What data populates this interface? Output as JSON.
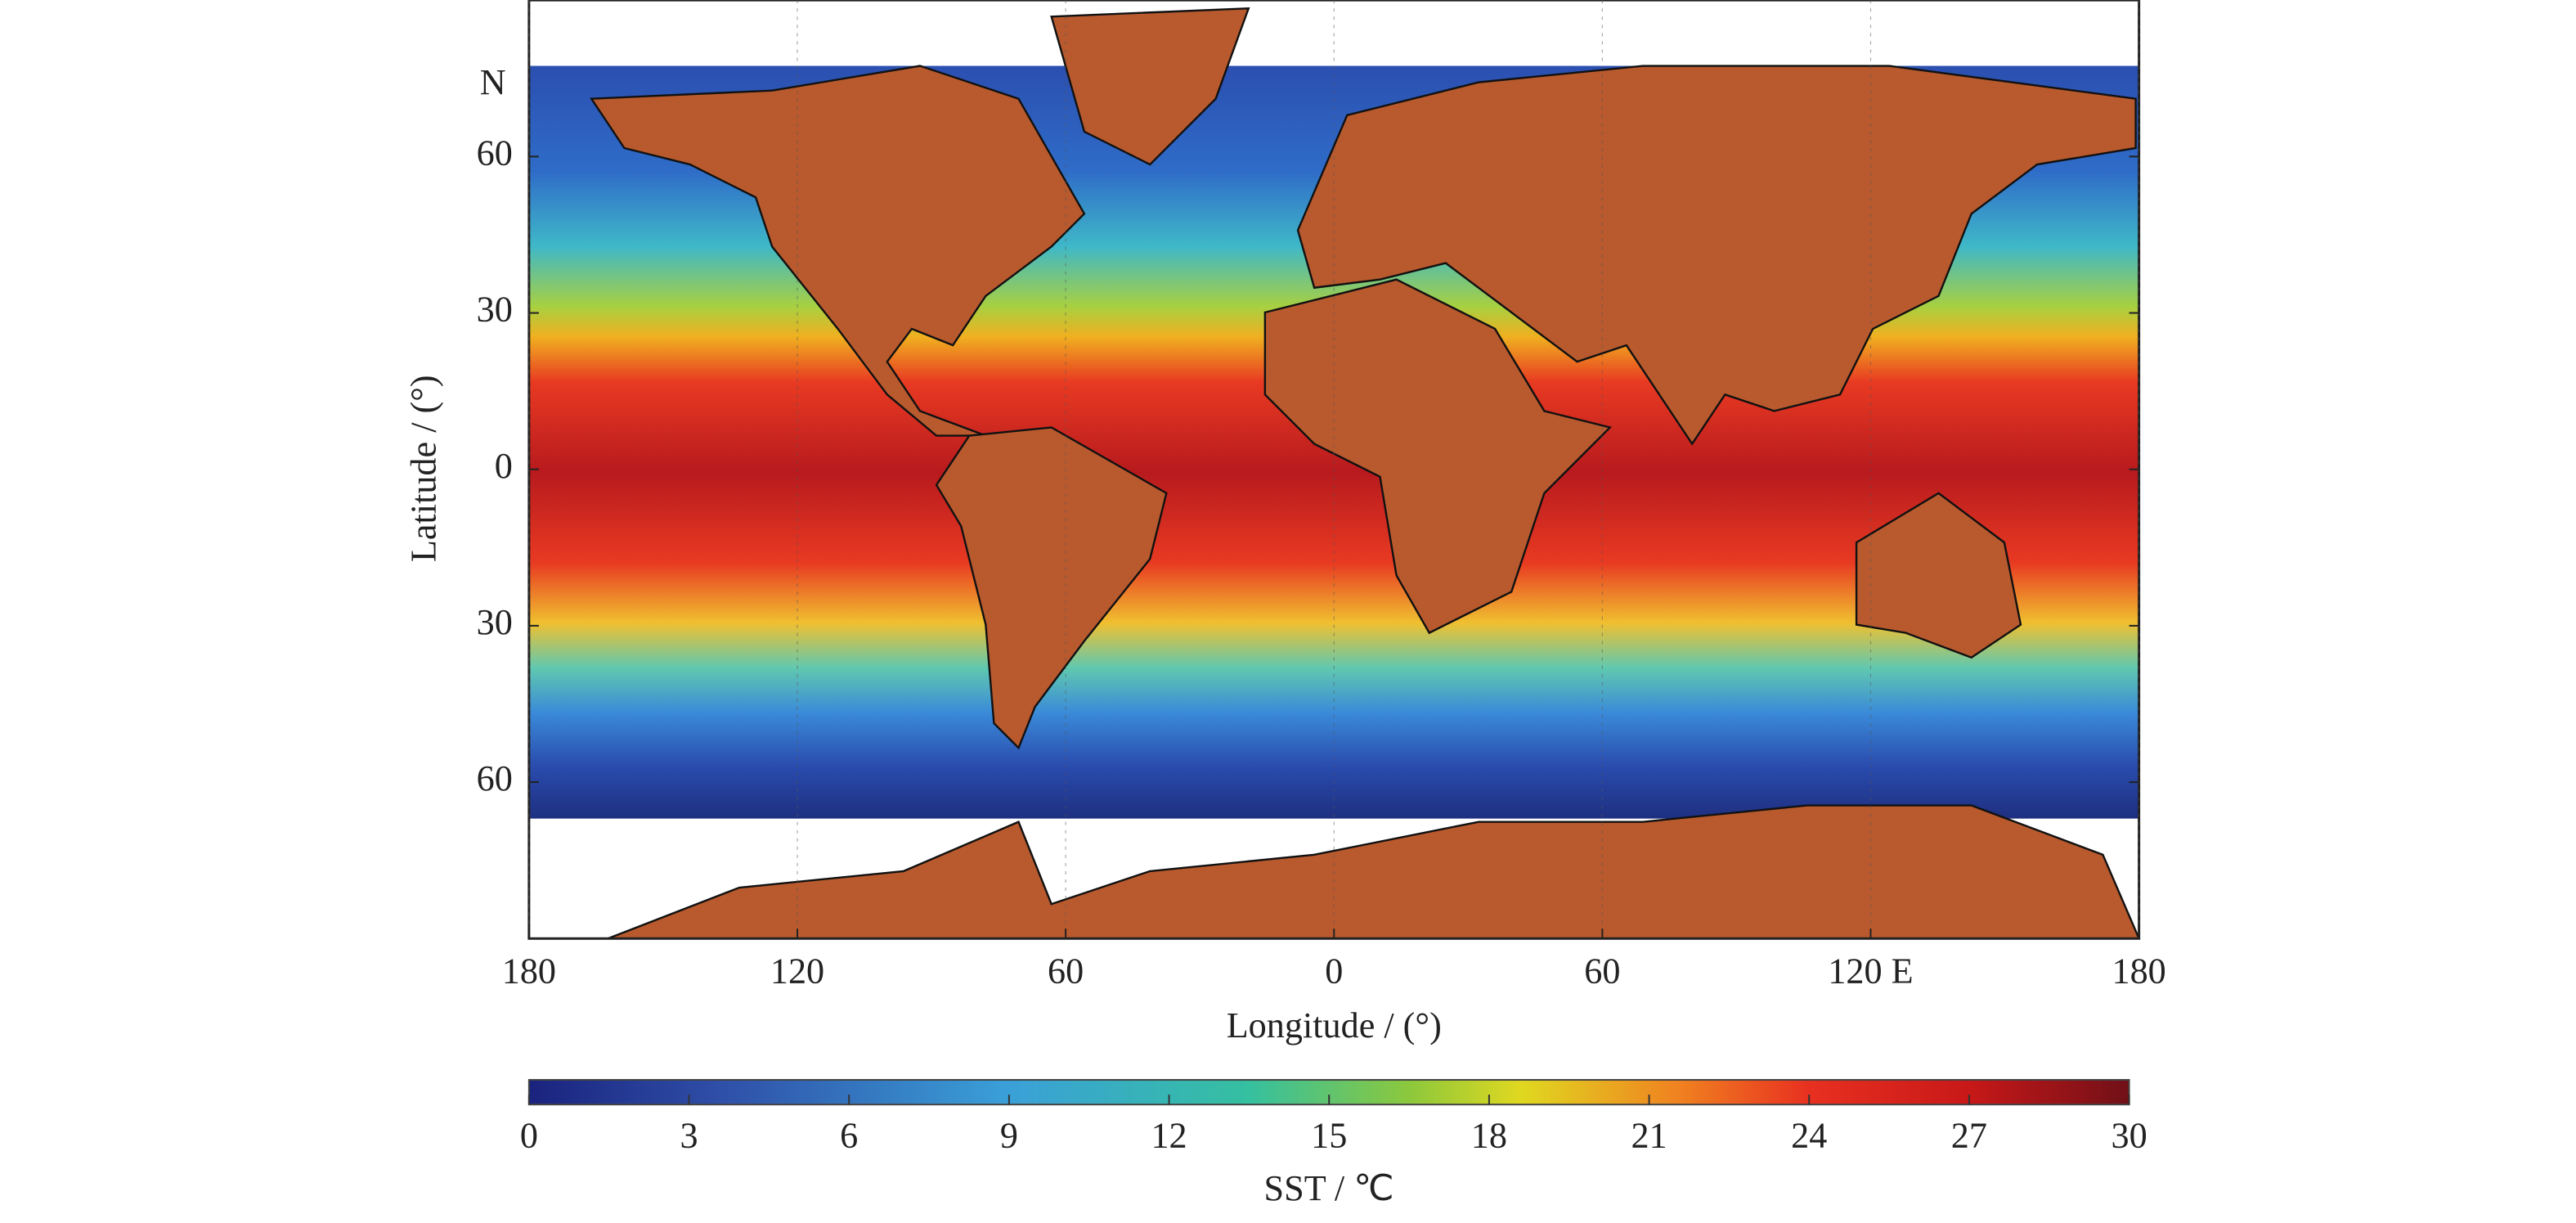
{
  "map": {
    "xlabel": "Longitude / (°)",
    "ylabel": "Latitude / (°)",
    "north_label": "N",
    "xlim": [
      -180,
      180
    ],
    "ylim": [
      -90,
      90
    ],
    "xticks": [
      {
        "value": -180,
        "label": "180"
      },
      {
        "value": -120,
        "label": "120"
      },
      {
        "value": -60,
        "label": "60"
      },
      0,
      60,
      {
        "value": 120,
        "label": "120 E"
      },
      180
    ],
    "yticks": [
      60,
      30,
      0,
      {
        "value": -30,
        "label": "30"
      },
      {
        "value": -60,
        "label": "60"
      }
    ],
    "grid": true
  },
  "colorbar": {
    "label": "SST / ℃",
    "clim": [
      0,
      30
    ],
    "ticks": [
      0,
      3,
      6,
      9,
      12,
      15,
      18,
      21,
      24,
      27,
      30
    ]
  }
}
